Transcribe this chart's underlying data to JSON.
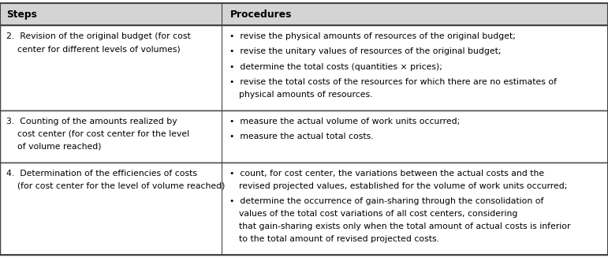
{
  "header": [
    "Steps",
    "Procedures"
  ],
  "col_split": 0.365,
  "header_bg": "#d4d4d4",
  "border_color": "#444444",
  "header_text_color": "#000000",
  "body_text_color": "#000000",
  "font_size": 7.8,
  "header_font_size": 8.8,
  "fig_w": 7.71,
  "fig_h": 3.27,
  "dpi": 100,
  "rows": [
    {
      "step_lines": [
        "2.  Revision of the original budget (for cost",
        "    center for different levels of volumes)"
      ],
      "proc_bullets": [
        [
          "revise the physical amounts of resources of the original budget;"
        ],
        [
          "revise the unitary values of resources of the original budget;"
        ],
        [
          "determine the total costs (quantities × prices);"
        ],
        [
          "revise the total costs of the resources for which there are no estimates of",
          "physical amounts of resources."
        ]
      ]
    },
    {
      "step_lines": [
        "3.  Counting of the amounts realized by",
        "    cost center (for cost center for the level",
        "    of volume reached)"
      ],
      "proc_bullets": [
        [
          "measure the actual volume of work units occurred;"
        ],
        [
          "measure the actual total costs."
        ]
      ]
    },
    {
      "step_lines": [
        "4.  Determination of the efficiencies of costs",
        "    (for cost center for the level of volume reached)"
      ],
      "proc_bullets": [
        [
          "count, for cost center, the variations between the actual costs and the",
          "revised projected values, established for the volume of work units occurred;"
        ],
        [
          "determine the occurrence of gain-sharing through the consolidation of",
          "values of the total cost variations of all cost centers, considering",
          "that gain-sharing exists only when the total amount of actual costs is inferior",
          "to the total amount of revised projected costs."
        ]
      ]
    }
  ]
}
